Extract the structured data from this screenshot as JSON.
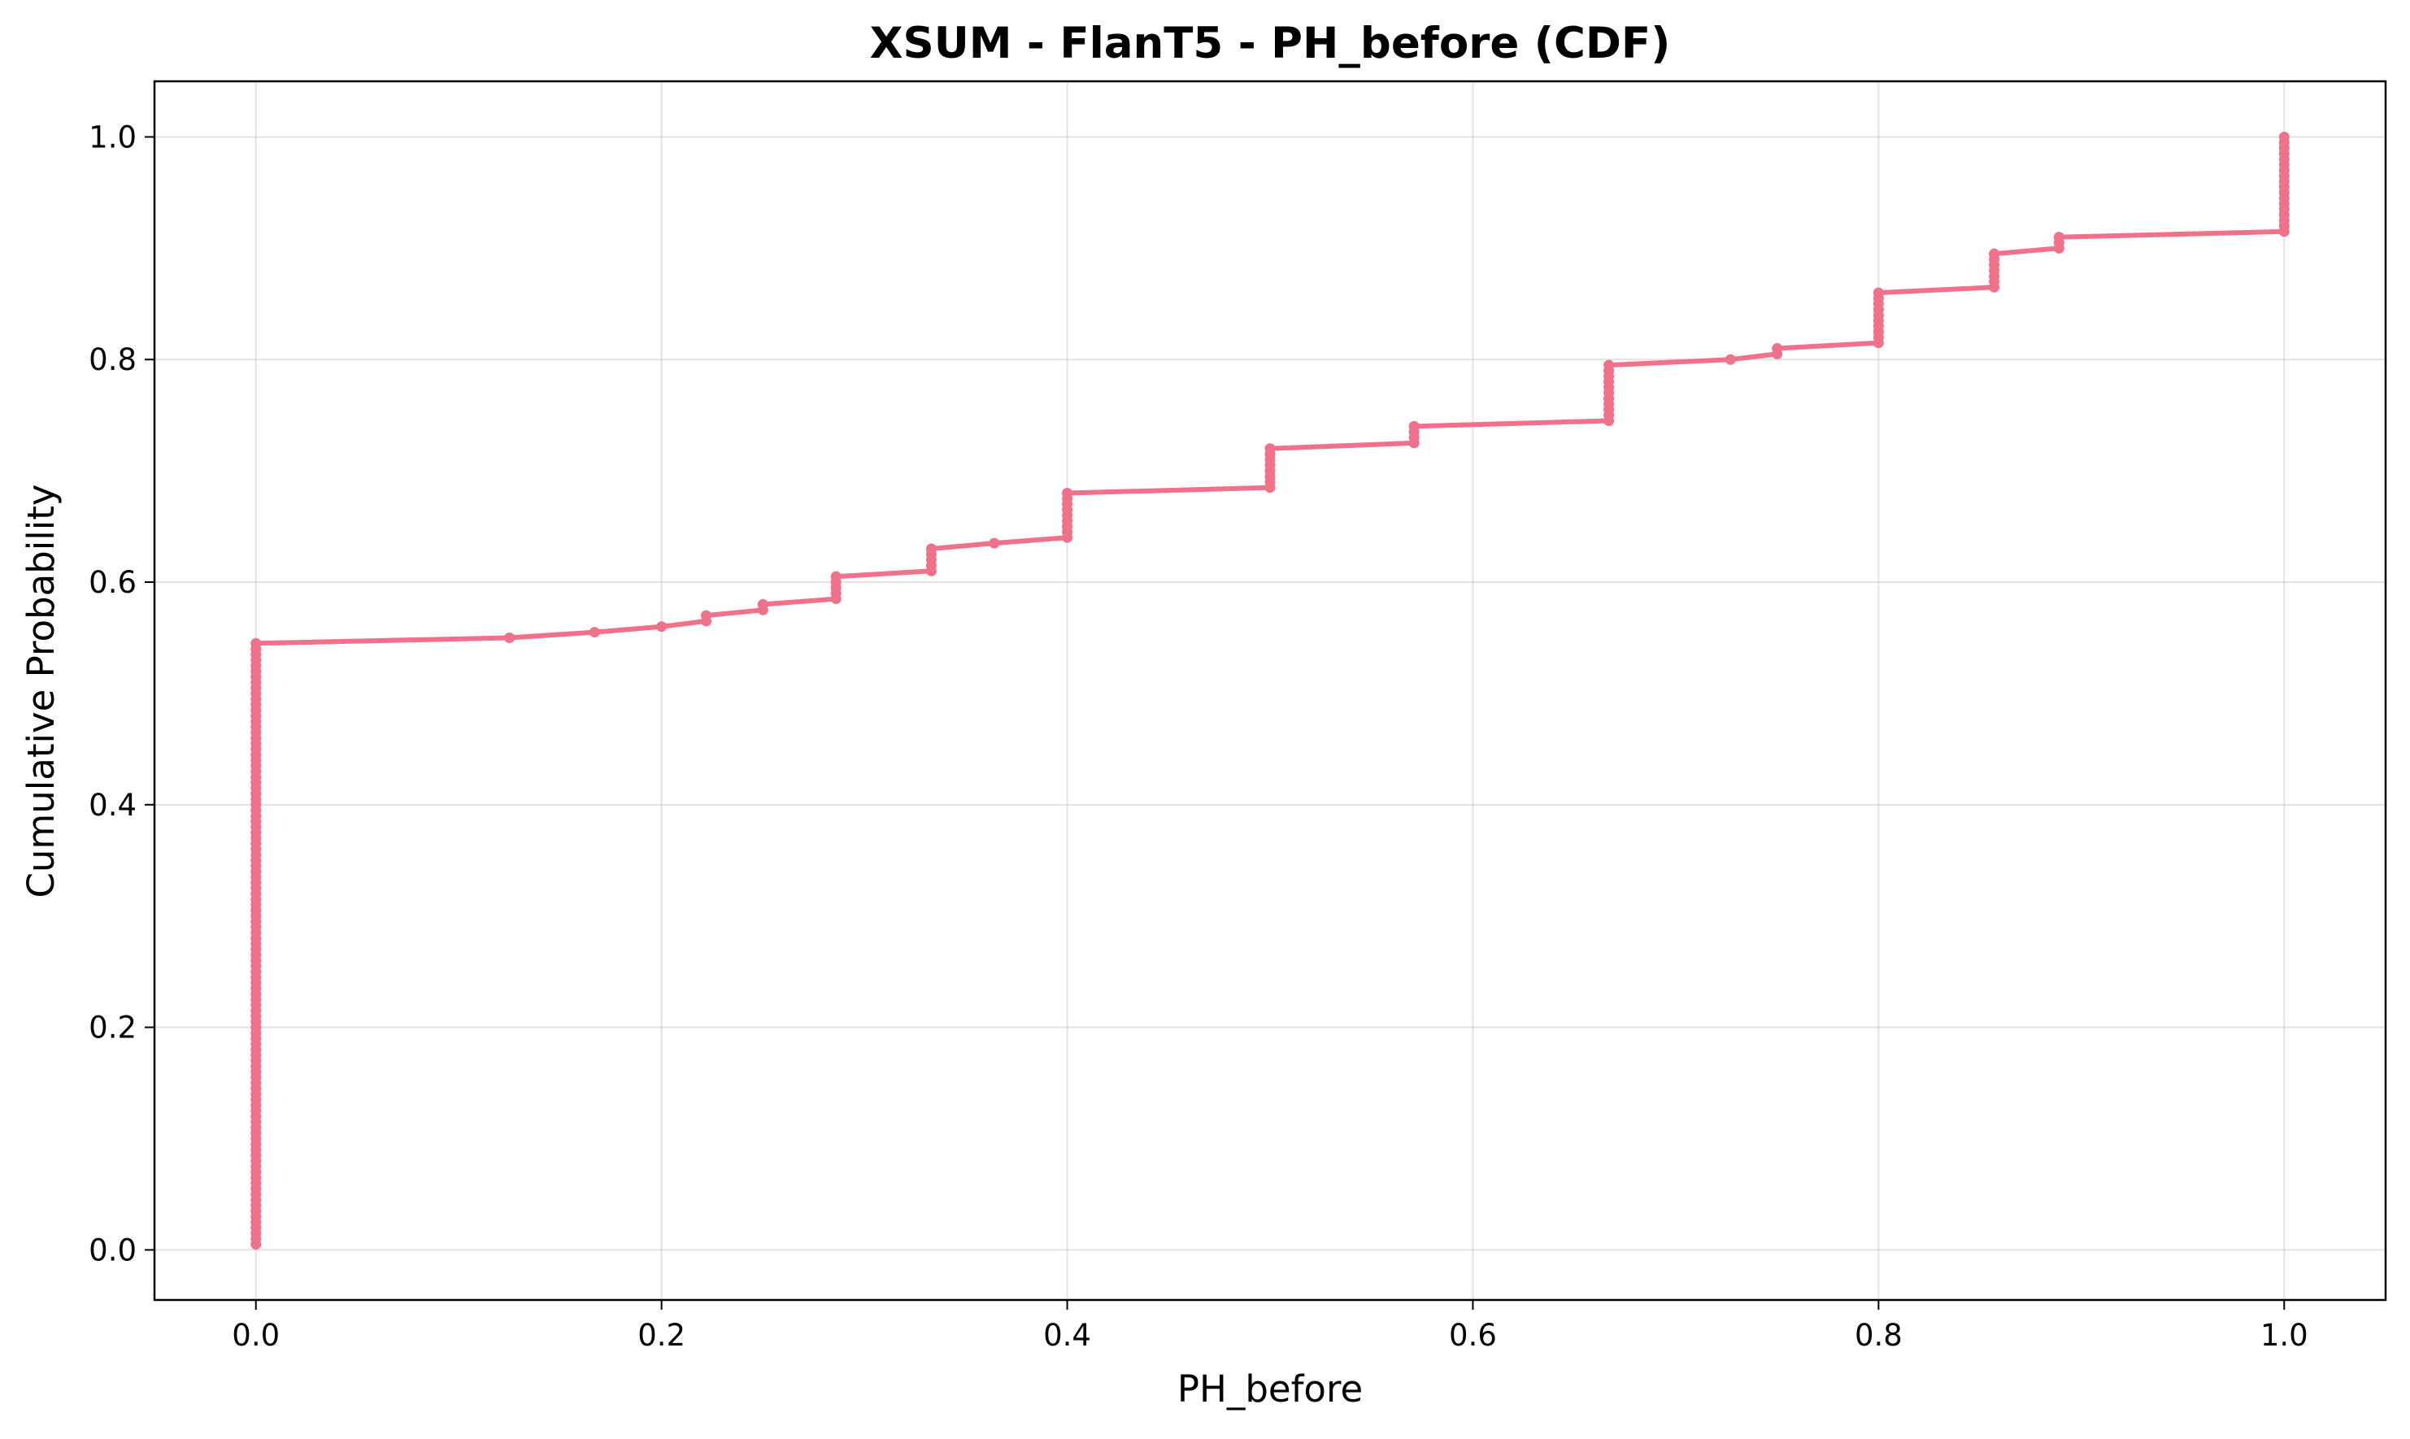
{
  "chart_data": {
    "type": "line",
    "title": "XSUM - FlanT5 - PH_before (CDF)",
    "xlabel": "PH_before",
    "ylabel": "Cumulative Probability",
    "xlim": [
      -0.05,
      1.05
    ],
    "ylim": [
      -0.045,
      1.05
    ],
    "xticks": [
      0.0,
      0.2,
      0.4,
      0.6,
      0.8,
      1.0
    ],
    "xtick_labels": [
      "0.0",
      "0.2",
      "0.4",
      "0.6",
      "0.8",
      "1.0"
    ],
    "yticks": [
      0.0,
      0.2,
      0.4,
      0.6,
      0.8,
      1.0
    ],
    "ytick_labels": [
      "0.0",
      "0.2",
      "0.4",
      "0.6",
      "0.8",
      "1.0"
    ],
    "grid": true,
    "legend": false,
    "color": "#f0718a",
    "series": [
      {
        "points": [
          [
            0.0,
            0.005
          ],
          [
            0.0,
            0.545
          ],
          [
            0.125,
            0.55
          ],
          [
            0.167,
            0.555
          ],
          [
            0.2,
            0.56
          ],
          [
            0.222,
            0.565
          ],
          [
            0.222,
            0.57
          ],
          [
            0.25,
            0.575
          ],
          [
            0.25,
            0.58
          ],
          [
            0.286,
            0.585
          ],
          [
            0.286,
            0.605
          ],
          [
            0.333,
            0.61
          ],
          [
            0.333,
            0.63
          ],
          [
            0.364,
            0.635
          ],
          [
            0.4,
            0.64
          ],
          [
            0.4,
            0.68
          ],
          [
            0.5,
            0.685
          ],
          [
            0.5,
            0.72
          ],
          [
            0.571,
            0.725
          ],
          [
            0.571,
            0.74
          ],
          [
            0.667,
            0.745
          ],
          [
            0.667,
            0.795
          ],
          [
            0.727,
            0.8
          ],
          [
            0.75,
            0.805
          ],
          [
            0.75,
            0.81
          ],
          [
            0.8,
            0.815
          ],
          [
            0.8,
            0.86
          ],
          [
            0.857,
            0.865
          ],
          [
            0.857,
            0.895
          ],
          [
            0.889,
            0.9
          ],
          [
            0.889,
            0.91
          ],
          [
            1.0,
            0.915
          ],
          [
            1.0,
            1.0
          ]
        ]
      }
    ]
  }
}
